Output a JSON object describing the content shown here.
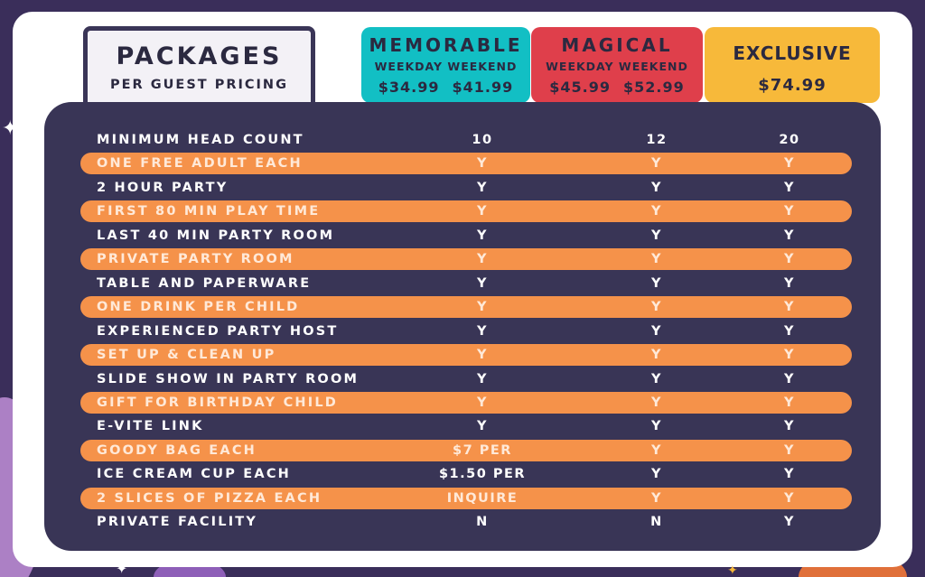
{
  "title": {
    "main": "PACKAGES",
    "sub": "PER GUEST PRICING"
  },
  "packages": [
    {
      "name": "MEMORABLE",
      "sub": "WEEKDAY WEEKEND",
      "prices": [
        "$34.99",
        "$41.99"
      ],
      "color": "#12bfc4"
    },
    {
      "name": "MAGICAL",
      "sub": "WEEKDAY WEEKEND",
      "prices": [
        "$45.99",
        "$52.99"
      ],
      "color": "#df3f4b"
    },
    {
      "name": "EXCLUSIVE",
      "price": "$74.99",
      "color": "#f7b93a"
    }
  ],
  "rows": [
    {
      "label": "MINIMUM HEAD COUNT",
      "v": [
        "10",
        "12",
        "20"
      ]
    },
    {
      "label": "ONE FREE ADULT EACH",
      "v": [
        "Y",
        "Y",
        "Y"
      ]
    },
    {
      "label": "2 HOUR PARTY",
      "v": [
        "Y",
        "Y",
        "Y"
      ]
    },
    {
      "label": "FIRST 80 MIN PLAY TIME",
      "v": [
        "Y",
        "Y",
        "Y"
      ]
    },
    {
      "label": "LAST 40 MIN PARTY ROOM",
      "v": [
        "Y",
        "Y",
        "Y"
      ]
    },
    {
      "label": "PRIVATE PARTY ROOM",
      "v": [
        "Y",
        "Y",
        "Y"
      ]
    },
    {
      "label": "TABLE AND PAPERWARE",
      "v": [
        "Y",
        "Y",
        "Y"
      ]
    },
    {
      "label": "ONE DRINK PER CHILD",
      "v": [
        "Y",
        "Y",
        "Y"
      ]
    },
    {
      "label": "EXPERIENCED PARTY HOST",
      "v": [
        "Y",
        "Y",
        "Y"
      ]
    },
    {
      "label": "SET UP & CLEAN UP",
      "v": [
        "Y",
        "Y",
        "Y"
      ]
    },
    {
      "label": "SLIDE SHOW IN PARTY ROOM",
      "v": [
        "Y",
        "Y",
        "Y"
      ]
    },
    {
      "label": "GIFT FOR BIRTHDAY CHILD",
      "v": [
        "Y",
        "Y",
        "Y"
      ]
    },
    {
      "label": "E-VITE LINK",
      "v": [
        "Y",
        "Y",
        "Y"
      ]
    },
    {
      "label": "GOODY BAG EACH",
      "v": [
        "$7 PER",
        "Y",
        "Y"
      ]
    },
    {
      "label": "ICE CREAM CUP EACH",
      "v": [
        "$1.50 PER",
        "Y",
        "Y"
      ]
    },
    {
      "label": "2 SLICES OF PIZZA EACH",
      "v": [
        "INQUIRE",
        "Y",
        "Y"
      ]
    },
    {
      "label": "PRIVATE FACILITY",
      "v": [
        "N",
        "N",
        "Y"
      ]
    }
  ]
}
